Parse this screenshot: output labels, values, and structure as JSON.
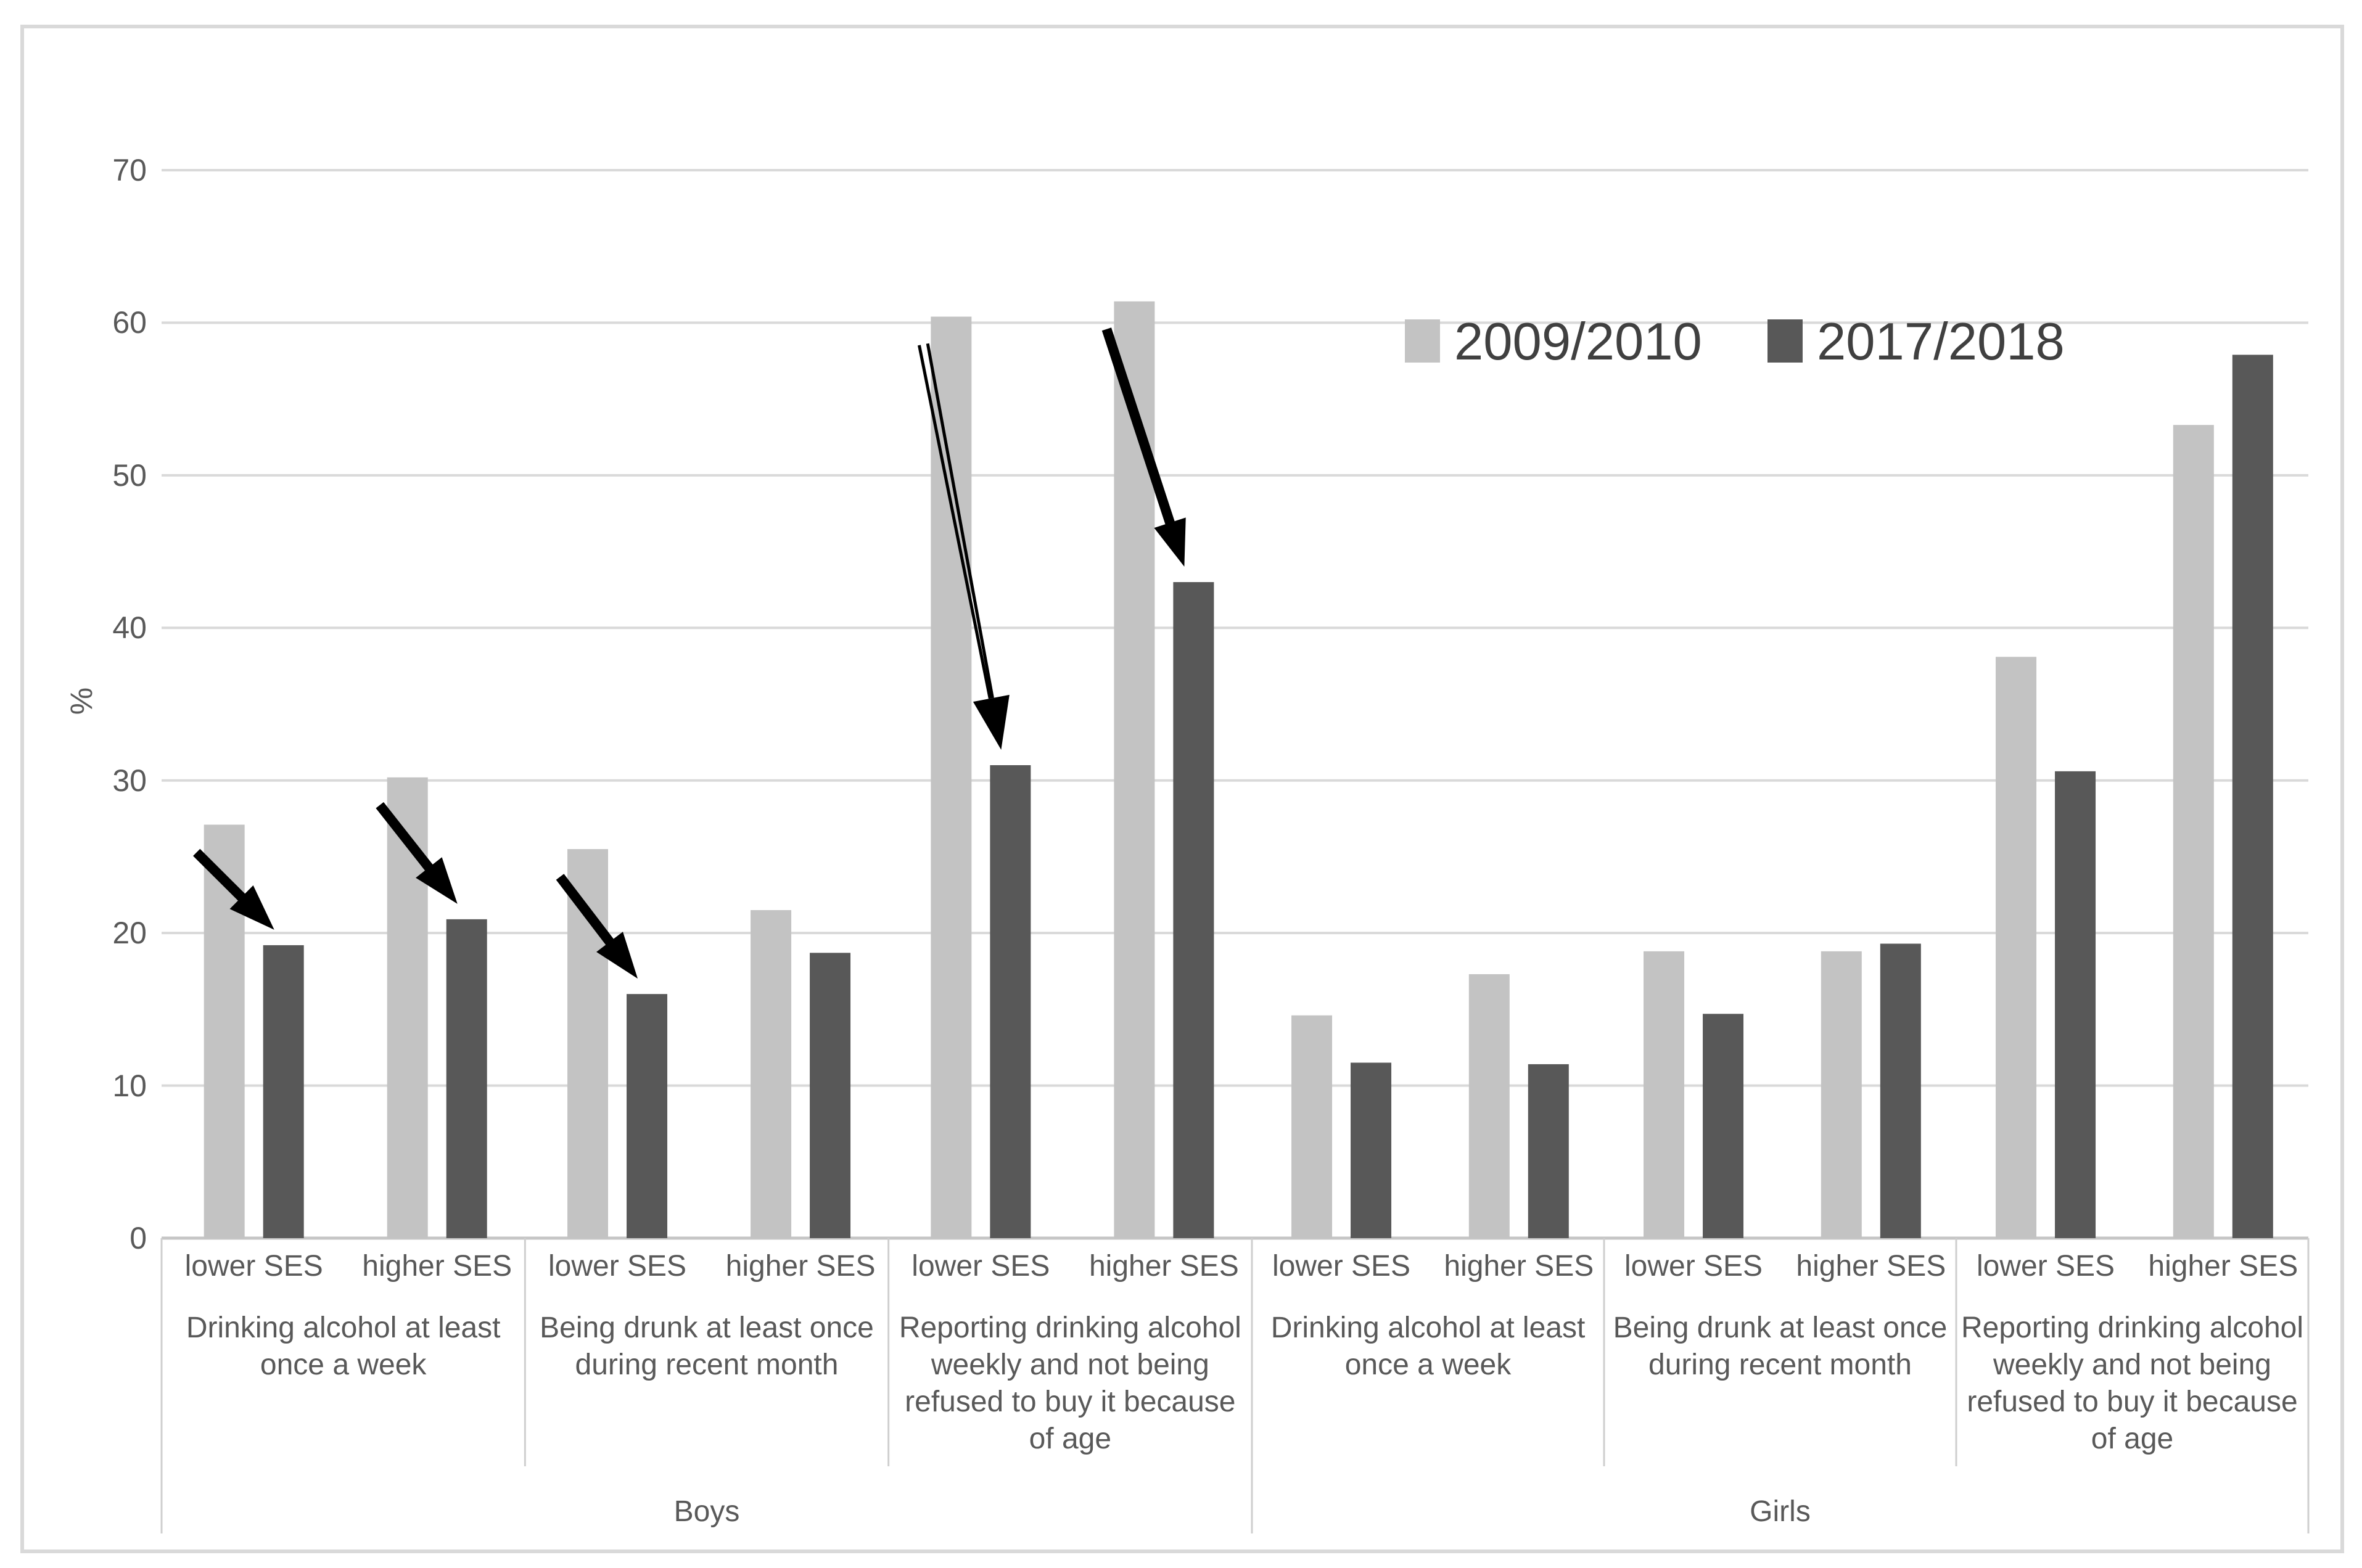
{
  "figure": {
    "ylabel": "%"
  },
  "colors": {
    "series_2009_2010": "#c3c3c3",
    "series_2017_2018": "#585858",
    "gridline": "#d9d9d9",
    "axis_line": "#c6c6c6",
    "separator": "#cfcfcf",
    "outer_border": "#d9d9d9",
    "axis_text": "#595959",
    "legend_text": "#404040",
    "arrow": "#000000"
  },
  "legend": {
    "items": [
      {
        "label": "2009/2010",
        "color": "#c3c3c3"
      },
      {
        "label": "2017/2018",
        "color": "#585858"
      }
    ]
  },
  "chart_data": {
    "type": "bar",
    "title": "",
    "xlabel": "",
    "ylabel": "%",
    "ylim": [
      0,
      70
    ],
    "ytick_interval": 10,
    "yticks": [
      0,
      10,
      20,
      30,
      40,
      50,
      60,
      70
    ],
    "grid": true,
    "legend_position": "top-right-inside",
    "series_names": [
      "2009/2010",
      "2017/2018"
    ],
    "groups": [
      {
        "group": "Boys",
        "categories": [
          {
            "category_lines": [
              "Drinking alcohol at least",
              "once a week"
            ],
            "subgroups": [
              {
                "ses": "lower SES",
                "values": [
                  27.1,
                  19.2
                ],
                "trend_arrow": "thick"
              },
              {
                "ses": "higher SES",
                "values": [
                  30.2,
                  20.9
                ],
                "trend_arrow": "thick"
              }
            ]
          },
          {
            "category_lines": [
              "Being drunk at least once",
              "during recent month"
            ],
            "subgroups": [
              {
                "ses": "lower SES",
                "values": [
                  25.5,
                  16.0
                ],
                "trend_arrow": "thick"
              },
              {
                "ses": "higher SES",
                "values": [
                  21.5,
                  18.7
                ],
                "trend_arrow": null
              }
            ]
          },
          {
            "category_lines": [
              "Reporting drinking alcohol",
              "weekly and not being",
              "refused to buy it because",
              "of age"
            ],
            "subgroups": [
              {
                "ses": "lower SES",
                "values": [
                  60.4,
                  31.0
                ],
                "trend_arrow": "double"
              },
              {
                "ses": "higher SES",
                "values": [
                  61.4,
                  43.0
                ],
                "trend_arrow": "thick"
              }
            ]
          }
        ]
      },
      {
        "group": "Girls",
        "categories": [
          {
            "category_lines": [
              "Drinking alcohol at least",
              "once a week"
            ],
            "subgroups": [
              {
                "ses": "lower SES",
                "values": [
                  14.6,
                  11.5
                ],
                "trend_arrow": null
              },
              {
                "ses": "higher SES",
                "values": [
                  17.3,
                  11.4
                ],
                "trend_arrow": null
              }
            ]
          },
          {
            "category_lines": [
              "Being drunk at least once",
              "during recent month"
            ],
            "subgroups": [
              {
                "ses": "lower SES",
                "values": [
                  18.8,
                  14.7
                ],
                "trend_arrow": null
              },
              {
                "ses": "higher SES",
                "values": [
                  18.8,
                  19.3
                ],
                "trend_arrow": null
              }
            ]
          },
          {
            "category_lines": [
              "Reporting drinking alcohol",
              "weekly and not being",
              "refused to buy it because",
              "of age"
            ],
            "subgroups": [
              {
                "ses": "lower SES",
                "values": [
                  38.1,
                  30.6
                ],
                "trend_arrow": null
              },
              {
                "ses": "higher SES",
                "values": [
                  53.3,
                  57.9
                ],
                "trend_arrow": null
              }
            ]
          }
        ]
      }
    ]
  }
}
